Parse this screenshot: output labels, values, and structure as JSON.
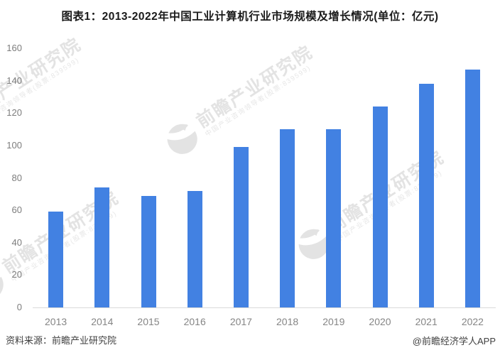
{
  "title": "图表1：2013-2022年中国工业计算机行业市场规模及增长情况(单位：亿元)",
  "chart_data": {
    "type": "bar",
    "title": "图表1：2013-2022年中国工业计算机行业市场规模及增长情况",
    "unit": "亿元",
    "categories": [
      "2013",
      "2014",
      "2015",
      "2016",
      "2017",
      "2018",
      "2019",
      "2020",
      "2021",
      "2022"
    ],
    "values": [
      59,
      74,
      69,
      72,
      99,
      110,
      110,
      124,
      138,
      147
    ],
    "xlabel": "",
    "ylabel": "",
    "ylim": [
      0,
      160
    ],
    "yticks": [
      0,
      20,
      40,
      60,
      80,
      100,
      120,
      140,
      160
    ],
    "grid": false,
    "legend_position": "none",
    "bar_color": "#4281e2"
  },
  "watermark": {
    "logo_icon": "qianzhan-logo-icon",
    "text_large": "前瞻产业研究院",
    "text_small": "中国产业咨询领导者(股票:839599)",
    "color": "#e3e3e3"
  },
  "footer": {
    "source": "资料来源：前瞻产业研究院",
    "credit": "@前瞻经济学人APP"
  }
}
